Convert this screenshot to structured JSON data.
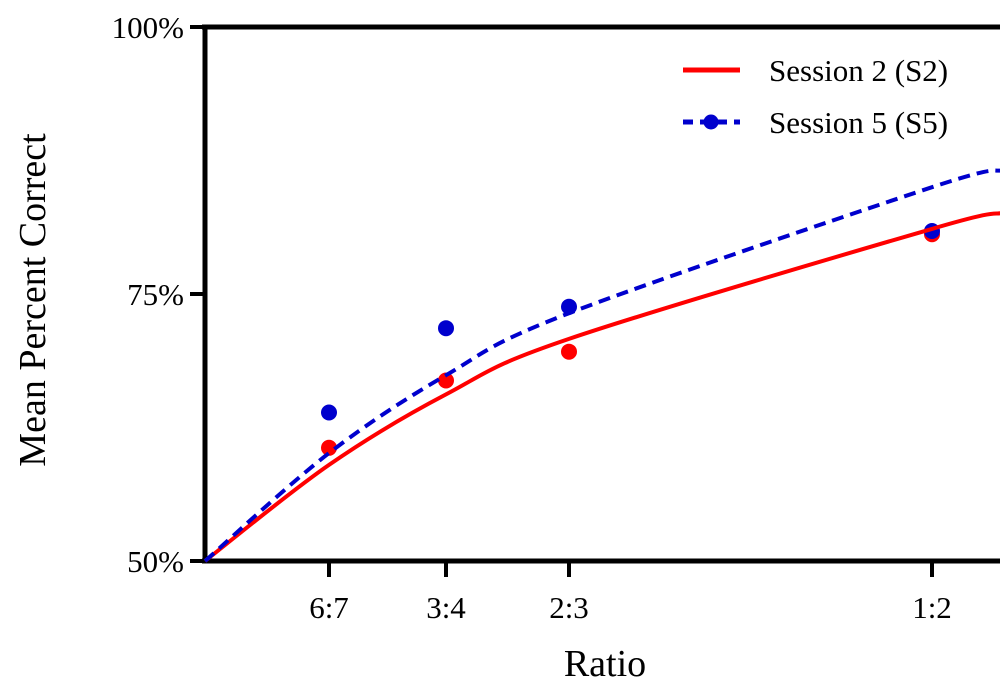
{
  "chart_data": {
    "type": "scatter",
    "title": "",
    "xlabel": "Ratio",
    "ylabel": "Mean Percent Correct",
    "y_tick_labels": [
      "50%",
      "75%",
      "100%"
    ],
    "y_ticks": [
      50,
      75,
      100
    ],
    "ylim": [
      50,
      100
    ],
    "x_tick_labels": [
      "6:7",
      "3:4",
      "2:3",
      "1:2"
    ],
    "x_ticks": [
      0.857,
      0.75,
      0.667,
      0.5
    ],
    "x_axis_note": "x axis is the smaller:larger ratio, decreasing to the right",
    "legend_position": "top-right",
    "grid": false,
    "series": [
      {
        "name": "Session 2 (S2)",
        "color": "#ff0000",
        "line_style": "solid",
        "points": [
          {
            "x_label": "6:7",
            "x": 0.857,
            "y": 60.6
          },
          {
            "x_label": "3:4",
            "x": 0.75,
            "y": 66.9
          },
          {
            "x_label": "2:3",
            "x": 0.667,
            "y": 69.6
          },
          {
            "x_label": "1:2",
            "x": 0.5,
            "y": 80.6
          }
        ],
        "fit": [
          {
            "x": 0.97,
            "y": 50.0
          },
          {
            "x": 0.857,
            "y": 59.0
          },
          {
            "x": 0.75,
            "y": 65.6
          },
          {
            "x": 0.667,
            "y": 70.8
          },
          {
            "x": 0.5,
            "y": 81.1
          },
          {
            "x": 0.43,
            "y": 82.6
          }
        ]
      },
      {
        "name": "Session 5 (S5)",
        "color": "#0000cd",
        "line_style": "dashed",
        "points": [
          {
            "x_label": "6:7",
            "x": 0.857,
            "y": 63.9
          },
          {
            "x_label": "3:4",
            "x": 0.75,
            "y": 71.8
          },
          {
            "x_label": "2:3",
            "x": 0.667,
            "y": 73.8
          },
          {
            "x_label": "1:2",
            "x": 0.5,
            "y": 80.9
          }
        ],
        "fit": [
          {
            "x": 0.97,
            "y": 50.0
          },
          {
            "x": 0.857,
            "y": 60.1
          },
          {
            "x": 0.75,
            "y": 67.4
          },
          {
            "x": 0.667,
            "y": 73.2
          },
          {
            "x": 0.5,
            "y": 85.0
          },
          {
            "x": 0.43,
            "y": 86.6
          }
        ]
      }
    ]
  }
}
